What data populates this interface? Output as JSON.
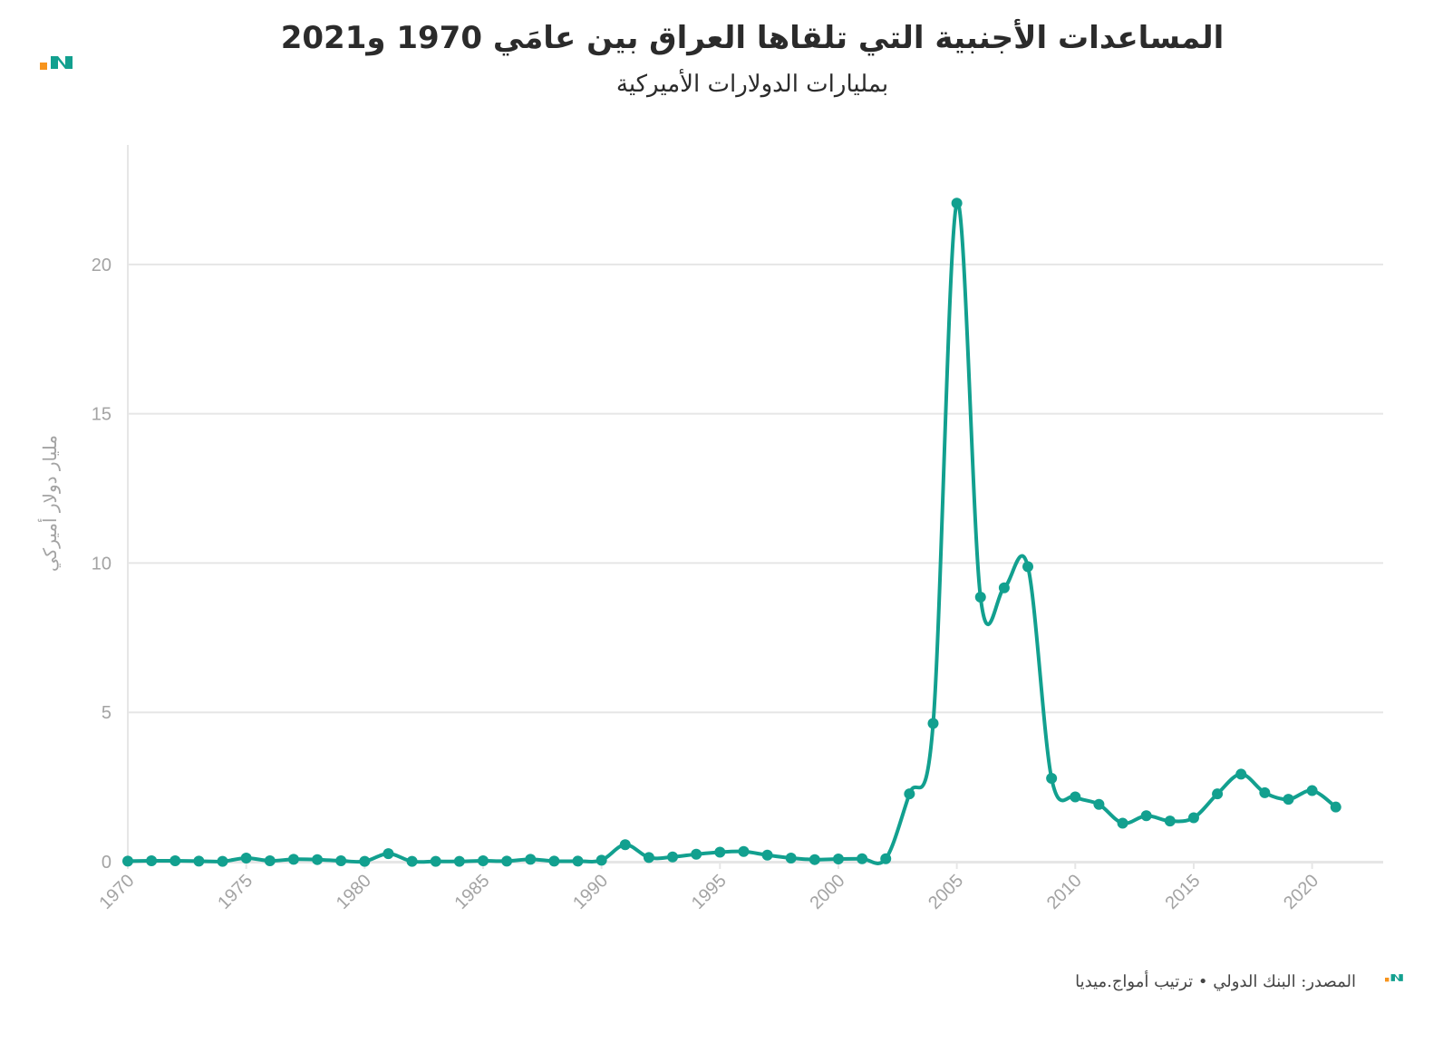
{
  "header": {
    "title": "المساعدات الأجنبية التي تلقاها العراق بين عامَي 1970 و2021",
    "subtitle": "بمليارات الدولارات الأميركية"
  },
  "footer": {
    "source": "المصدر: البنك الدولي • ترتيب أمواج.ميديا"
  },
  "colors": {
    "line": "#12a08f",
    "grid": "#e6e6e6",
    "axis_text": "#a3a3a3",
    "logo_orange": "#f7941d",
    "logo_teal": "#12a08f"
  },
  "icons": {
    "brand_logo": "amwaj-logo-icon",
    "footer_logo": "amwaj-logo-icon"
  },
  "chart_data": {
    "type": "line",
    "title": "المساعدات الأجنبية التي تلقاها العراق بين عامَي 1970 و2021",
    "subtitle": "بمليارات الدولارات الأميركية",
    "xlabel": "",
    "ylabel": "مليار دولار أميركي",
    "xlim": [
      1970,
      2023
    ],
    "ylim": [
      0,
      24
    ],
    "x_ticks": [
      "1970",
      "1975",
      "1980",
      "1985",
      "1990",
      "1995",
      "2000",
      "2005",
      "2010",
      "2015",
      "2020"
    ],
    "y_ticks": [
      "0",
      "5",
      "10",
      "15",
      "20"
    ],
    "grid": true,
    "legend": "none",
    "series": [
      {
        "x": [
          1970,
          1971,
          1972,
          1973,
          1974,
          1975,
          1976,
          1977,
          1978,
          1979,
          1980,
          1981,
          1982,
          1983,
          1984,
          1985,
          1986,
          1987,
          1988,
          1989,
          1990,
          1991,
          1992,
          1993,
          1994,
          1995,
          1996,
          1997,
          1998,
          1999,
          2000,
          2001,
          2002,
          2003,
          2004,
          2005,
          2006,
          2007,
          2008,
          2009,
          2010,
          2011,
          2012,
          2013,
          2014,
          2015,
          2016,
          2017,
          2018,
          2019,
          2020,
          2021
        ],
        "y": [
          0.02,
          0.03,
          0.03,
          0.02,
          0.01,
          0.12,
          0.03,
          0.08,
          0.07,
          0.03,
          0.01,
          0.27,
          0.01,
          0.01,
          0.01,
          0.03,
          0.02,
          0.08,
          0.02,
          0.02,
          0.05,
          0.57,
          0.14,
          0.16,
          0.25,
          0.32,
          0.34,
          0.22,
          0.12,
          0.07,
          0.09,
          0.1,
          0.1,
          2.27,
          4.63,
          22.05,
          8.86,
          9.17,
          9.88,
          2.79,
          2.17,
          1.92,
          1.29,
          1.54,
          1.36,
          1.47,
          2.27,
          2.93,
          2.31,
          2.09,
          2.38,
          1.83
        ]
      }
    ]
  }
}
